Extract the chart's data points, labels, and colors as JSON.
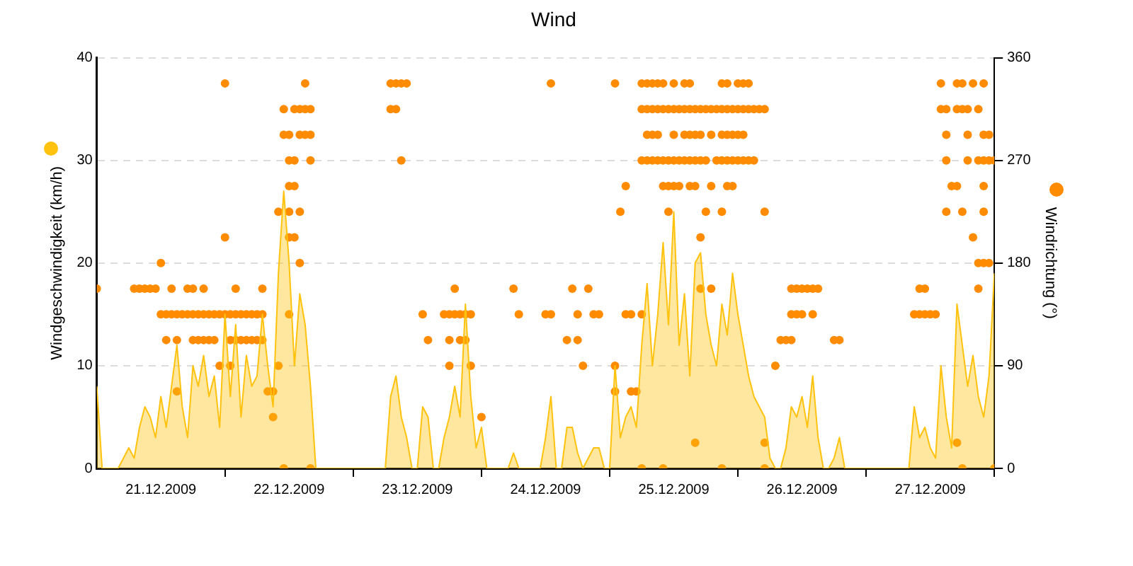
{
  "chart_data": {
    "type": "area",
    "title": "Wind",
    "ylabel": "Windgeschwindigkeit (km/h)",
    "y2label": "Windrichtung (°)",
    "xlim": [
      "2009-12-21T00:00",
      "2009-12-28T00:00"
    ],
    "xticks": [
      {
        "value": "2009-12-21T12:00",
        "label": "21.12.2009"
      },
      {
        "value": "2009-12-22T00:00",
        "label": null
      },
      {
        "value": "2009-12-22T12:00",
        "label": "22.12.2009"
      },
      {
        "value": "2009-12-23T00:00",
        "label": null
      },
      {
        "value": "2009-12-23T12:00",
        "label": "23.12.2009"
      },
      {
        "value": "2009-12-24T00:00",
        "label": null
      },
      {
        "value": "2009-12-24T12:00",
        "label": "24.12.2009"
      },
      {
        "value": "2009-12-25T00:00",
        "label": null
      },
      {
        "value": "2009-12-25T12:00",
        "label": "25.12.2009"
      },
      {
        "value": "2009-12-26T00:00",
        "label": null
      },
      {
        "value": "2009-12-26T12:00",
        "label": "26.12.2009"
      },
      {
        "value": "2009-12-27T00:00",
        "label": null
      },
      {
        "value": "2009-12-27T12:00",
        "label": "27.12.2009"
      },
      {
        "value": "2009-12-28T00:00",
        "label": null
      }
    ],
    "ylim": [
      0,
      40
    ],
    "yticks": [
      0,
      10,
      20,
      30,
      40
    ],
    "y2lim": [
      0,
      360
    ],
    "y2ticks": [
      0,
      90,
      180,
      270,
      360
    ],
    "grid": "y",
    "legend": false,
    "x": [
      "2009-12-21T00:00",
      "2009-12-21T01:00",
      "2009-12-21T02:00",
      "2009-12-21T03:00",
      "2009-12-21T04:00",
      "2009-12-21T05:00",
      "2009-12-21T06:00",
      "2009-12-21T07:00",
      "2009-12-21T08:00",
      "2009-12-21T09:00",
      "2009-12-21T10:00",
      "2009-12-21T11:00",
      "2009-12-21T12:00",
      "2009-12-21T13:00",
      "2009-12-21T14:00",
      "2009-12-21T15:00",
      "2009-12-21T16:00",
      "2009-12-21T17:00",
      "2009-12-21T18:00",
      "2009-12-21T19:00",
      "2009-12-21T20:00",
      "2009-12-21T21:00",
      "2009-12-21T22:00",
      "2009-12-21T23:00",
      "2009-12-22T00:00",
      "2009-12-22T01:00",
      "2009-12-22T02:00",
      "2009-12-22T03:00",
      "2009-12-22T04:00",
      "2009-12-22T05:00",
      "2009-12-22T06:00",
      "2009-12-22T07:00",
      "2009-12-22T08:00",
      "2009-12-22T09:00",
      "2009-12-22T10:00",
      "2009-12-22T11:00",
      "2009-12-22T12:00",
      "2009-12-22T13:00",
      "2009-12-22T14:00",
      "2009-12-22T15:00",
      "2009-12-22T16:00",
      "2009-12-22T17:00",
      "2009-12-23T06:00",
      "2009-12-23T07:00",
      "2009-12-23T08:00",
      "2009-12-23T09:00",
      "2009-12-23T10:00",
      "2009-12-23T11:00",
      "2009-12-23T12:00",
      "2009-12-23T13:00",
      "2009-12-23T14:00",
      "2009-12-23T15:00",
      "2009-12-23T16:00",
      "2009-12-23T17:00",
      "2009-12-23T18:00",
      "2009-12-23T19:00",
      "2009-12-23T20:00",
      "2009-12-23T21:00",
      "2009-12-23T22:00",
      "2009-12-23T23:00",
      "2009-12-24T00:00",
      "2009-12-24T01:00",
      "2009-12-24T05:00",
      "2009-12-24T06:00",
      "2009-12-24T07:00",
      "2009-12-24T08:00",
      "2009-12-24T11:00",
      "2009-12-24T12:00",
      "2009-12-24T13:00",
      "2009-12-24T14:00",
      "2009-12-24T15:00",
      "2009-12-24T16:00",
      "2009-12-24T17:00",
      "2009-12-24T18:00",
      "2009-12-24T19:00",
      "2009-12-24T20:00",
      "2009-12-24T21:00",
      "2009-12-24T22:00",
      "2009-12-24T23:00",
      "2009-12-25T00:00",
      "2009-12-25T01:00",
      "2009-12-25T02:00",
      "2009-12-25T03:00",
      "2009-12-25T04:00",
      "2009-12-25T05:00",
      "2009-12-25T06:00",
      "2009-12-25T07:00",
      "2009-12-25T08:00",
      "2009-12-25T09:00",
      "2009-12-25T10:00",
      "2009-12-25T11:00",
      "2009-12-25T12:00",
      "2009-12-25T13:00",
      "2009-12-25T14:00",
      "2009-12-25T15:00",
      "2009-12-25T16:00",
      "2009-12-25T17:00",
      "2009-12-25T18:00",
      "2009-12-25T19:00",
      "2009-12-25T20:00",
      "2009-12-25T21:00",
      "2009-12-25T22:00",
      "2009-12-25T23:00",
      "2009-12-26T00:00",
      "2009-12-26T01:00",
      "2009-12-26T02:00",
      "2009-12-26T03:00",
      "2009-12-26T04:00",
      "2009-12-26T05:00",
      "2009-12-26T06:00",
      "2009-12-26T07:00",
      "2009-12-26T08:00",
      "2009-12-26T09:00",
      "2009-12-26T10:00",
      "2009-12-26T11:00",
      "2009-12-26T12:00",
      "2009-12-26T13:00",
      "2009-12-26T14:00",
      "2009-12-26T15:00",
      "2009-12-26T16:00",
      "2009-12-26T17:00",
      "2009-12-26T18:00",
      "2009-12-26T19:00",
      "2009-12-26T20:00",
      "2009-12-27T07:00",
      "2009-12-27T08:00",
      "2009-12-27T09:00",
      "2009-12-27T10:00",
      "2009-12-27T11:00",
      "2009-12-27T12:00",
      "2009-12-27T13:00",
      "2009-12-27T14:00",
      "2009-12-27T15:00",
      "2009-12-27T16:00",
      "2009-12-27T17:00",
      "2009-12-27T18:00",
      "2009-12-27T19:00",
      "2009-12-27T20:00",
      "2009-12-27T21:00",
      "2009-12-27T22:00",
      "2009-12-27T23:00",
      "2009-12-28T00:00"
    ],
    "series": [
      {
        "marker": "none",
        "color": "#ffc20e",
        "values": [
          8,
          0,
          0,
          0,
          0,
          1,
          2,
          1,
          4,
          6,
          5,
          3,
          7,
          4,
          8,
          12,
          6,
          3,
          10,
          8,
          11,
          7,
          9,
          4,
          15,
          7,
          14,
          5,
          11,
          8,
          9,
          15,
          10,
          6,
          19,
          27,
          20,
          10,
          17,
          14,
          8,
          0,
          0,
          7,
          9,
          5,
          3,
          0,
          0,
          6,
          5,
          0,
          0,
          3,
          5,
          8,
          5,
          16,
          7,
          2,
          4,
          0,
          0,
          1.5,
          0,
          0,
          0,
          3,
          7,
          0,
          0,
          4,
          4,
          1.5,
          0,
          1,
          2,
          2,
          0,
          0,
          10,
          3,
          5,
          6,
          4,
          12,
          18,
          10,
          15,
          22,
          14,
          25,
          12,
          17,
          9,
          20,
          21,
          15,
          12,
          10,
          16,
          13,
          19,
          15,
          12,
          9,
          7,
          6,
          5,
          1,
          0,
          0,
          2,
          6,
          5,
          7,
          4,
          9,
          3,
          0,
          0,
          1,
          3,
          0,
          0,
          0,
          6,
          3,
          4,
          2,
          1,
          10,
          5,
          2,
          16,
          12,
          8,
          11,
          7,
          5,
          9,
          19
        ]
      },
      {
        "type": "scatter",
        "axis": "y2",
        "marker": "circle",
        "color": "#ff8c00",
        "x": [
          "2009-12-21T00:00",
          "2009-12-21T07:00",
          "2009-12-21T08:00",
          "2009-12-21T09:00",
          "2009-12-21T10:00",
          "2009-12-21T11:00",
          "2009-12-21T12:00",
          "2009-12-21T12:00",
          "2009-12-21T13:00",
          "2009-12-21T13:00",
          "2009-12-21T14:00",
          "2009-12-21T14:00",
          "2009-12-21T15:00",
          "2009-12-21T15:00",
          "2009-12-21T15:00",
          "2009-12-21T16:00",
          "2009-12-21T17:00",
          "2009-12-21T17:00",
          "2009-12-21T18:00",
          "2009-12-21T18:00",
          "2009-12-21T18:00",
          "2009-12-21T19:00",
          "2009-12-21T19:00",
          "2009-12-21T20:00",
          "2009-12-21T20:00",
          "2009-12-21T20:00",
          "2009-12-21T21:00",
          "2009-12-21T21:00",
          "2009-12-21T22:00",
          "2009-12-21T22:00",
          "2009-12-21T23:00",
          "2009-12-21T23:00",
          "2009-12-22T00:00",
          "2009-12-22T00:00",
          "2009-12-22T00:00",
          "2009-12-22T01:00",
          "2009-12-22T01:00",
          "2009-12-22T01:00",
          "2009-12-22T02:00",
          "2009-12-22T02:00",
          "2009-12-22T02:00",
          "2009-12-22T03:00",
          "2009-12-22T03:00",
          "2009-12-22T04:00",
          "2009-12-22T04:00",
          "2009-12-22T05:00",
          "2009-12-22T05:00",
          "2009-12-22T06:00",
          "2009-12-22T06:00",
          "2009-12-22T07:00",
          "2009-12-22T07:00",
          "2009-12-22T07:00",
          "2009-12-22T08:00",
          "2009-12-22T09:00",
          "2009-12-22T09:00",
          "2009-12-22T10:00",
          "2009-12-22T10:00",
          "2009-12-22T11:00",
          "2009-12-22T11:00",
          "2009-12-22T11:00",
          "2009-12-22T12:00",
          "2009-12-22T12:00",
          "2009-12-22T12:00",
          "2009-12-22T12:00",
          "2009-12-22T12:00",
          "2009-12-22T12:00",
          "2009-12-22T13:00",
          "2009-12-22T13:00",
          "2009-12-22T13:00",
          "2009-12-22T13:00",
          "2009-12-22T14:00",
          "2009-12-22T14:00",
          "2009-12-22T14:00",
          "2009-12-22T14:00",
          "2009-12-22T15:00",
          "2009-12-22T15:00",
          "2009-12-22T15:00",
          "2009-12-22T16:00",
          "2009-12-22T16:00",
          "2009-12-22T16:00",
          "2009-12-22T16:00",
          "2009-12-23T07:00",
          "2009-12-23T07:00",
          "2009-12-23T08:00",
          "2009-12-23T08:00",
          "2009-12-23T09:00",
          "2009-12-23T09:00",
          "2009-12-23T10:00",
          "2009-12-23T13:00",
          "2009-12-23T14:00",
          "2009-12-23T17:00",
          "2009-12-23T18:00",
          "2009-12-23T18:00",
          "2009-12-23T18:00",
          "2009-12-23T19:00",
          "2009-12-23T19:00",
          "2009-12-23T20:00",
          "2009-12-23T20:00",
          "2009-12-23T21:00",
          "2009-12-23T21:00",
          "2009-12-23T22:00",
          "2009-12-23T22:00",
          "2009-12-24T00:00",
          "2009-12-24T06:00",
          "2009-12-24T07:00",
          "2009-12-24T12:00",
          "2009-12-24T13:00",
          "2009-12-24T13:00",
          "2009-12-24T16:00",
          "2009-12-24T17:00",
          "2009-12-24T18:00",
          "2009-12-24T18:00",
          "2009-12-24T19:00",
          "2009-12-24T20:00",
          "2009-12-24T21:00",
          "2009-12-24T22:00",
          "2009-12-25T01:00",
          "2009-12-25T01:00",
          "2009-12-25T01:00",
          "2009-12-25T02:00",
          "2009-12-25T03:00",
          "2009-12-25T03:00",
          "2009-12-25T04:00",
          "2009-12-25T04:00",
          "2009-12-25T05:00",
          "2009-12-25T06:00",
          "2009-12-25T06:00",
          "2009-12-25T06:00",
          "2009-12-25T06:00",
          "2009-12-25T06:00",
          "2009-12-25T07:00",
          "2009-12-25T07:00",
          "2009-12-25T07:00",
          "2009-12-25T07:00",
          "2009-12-25T08:00",
          "2009-12-25T08:00",
          "2009-12-25T08:00",
          "2009-12-25T08:00",
          "2009-12-25T09:00",
          "2009-12-25T09:00",
          "2009-12-25T09:00",
          "2009-12-25T09:00",
          "2009-12-25T10:00",
          "2009-12-25T10:00",
          "2009-12-25T10:00",
          "2009-12-25T10:00",
          "2009-12-25T10:00",
          "2009-12-25T11:00",
          "2009-12-25T11:00",
          "2009-12-25T11:00",
          "2009-12-25T11:00",
          "2009-12-25T12:00",
          "2009-12-25T12:00",
          "2009-12-25T12:00",
          "2009-12-25T12:00",
          "2009-12-25T12:00",
          "2009-12-25T13:00",
          "2009-12-25T13:00",
          "2009-12-25T13:00",
          "2009-12-25T14:00",
          "2009-12-25T14:00",
          "2009-12-25T14:00",
          "2009-12-25T14:00",
          "2009-12-25T15:00",
          "2009-12-25T15:00",
          "2009-12-25T15:00",
          "2009-12-25T15:00",
          "2009-12-25T15:00",
          "2009-12-25T16:00",
          "2009-12-25T16:00",
          "2009-12-25T16:00",
          "2009-12-25T16:00",
          "2009-12-25T16:00",
          "2009-12-25T17:00",
          "2009-12-25T17:00",
          "2009-12-25T17:00",
          "2009-12-25T17:00",
          "2009-12-25T17:00",
          "2009-12-25T18:00",
          "2009-12-25T18:00",
          "2009-12-25T18:00",
          "2009-12-25T19:00",
          "2009-12-25T19:00",
          "2009-12-25T19:00",
          "2009-12-25T19:00",
          "2009-12-25T20:00",
          "2009-12-25T20:00",
          "2009-12-25T21:00",
          "2009-12-25T21:00",
          "2009-12-25T21:00",
          "2009-12-25T21:00",
          "2009-12-25T21:00",
          "2009-12-25T21:00",
          "2009-12-25T22:00",
          "2009-12-25T22:00",
          "2009-12-25T22:00",
          "2009-12-25T22:00",
          "2009-12-25T22:00",
          "2009-12-25T23:00",
          "2009-12-25T23:00",
          "2009-12-25T23:00",
          "2009-12-25T23:00",
          "2009-12-26T00:00",
          "2009-12-26T00:00",
          "2009-12-26T00:00",
          "2009-12-26T00:00",
          "2009-12-26T01:00",
          "2009-12-26T01:00",
          "2009-12-26T01:00",
          "2009-12-26T01:00",
          "2009-12-26T02:00",
          "2009-12-26T02:00",
          "2009-12-26T02:00",
          "2009-12-26T03:00",
          "2009-12-26T03:00",
          "2009-12-26T04:00",
          "2009-12-26T05:00",
          "2009-12-26T05:00",
          "2009-12-26T05:00",
          "2009-12-26T05:00",
          "2009-12-26T07:00",
          "2009-12-26T08:00",
          "2009-12-26T09:00",
          "2009-12-26T10:00",
          "2009-12-26T10:00",
          "2009-12-26T10:00",
          "2009-12-26T11:00",
          "2009-12-26T11:00",
          "2009-12-26T12:00",
          "2009-12-26T12:00",
          "2009-12-26T13:00",
          "2009-12-26T14:00",
          "2009-12-26T14:00",
          "2009-12-26T15:00",
          "2009-12-26T18:00",
          "2009-12-26T19:00",
          "2009-12-27T09:00",
          "2009-12-27T10:00",
          "2009-12-27T10:00",
          "2009-12-27T11:00",
          "2009-12-27T11:00",
          "2009-12-27T12:00",
          "2009-12-27T13:00",
          "2009-12-27T14:00",
          "2009-12-27T14:00",
          "2009-12-27T15:00",
          "2009-12-27T15:00",
          "2009-12-27T15:00",
          "2009-12-27T15:00",
          "2009-12-27T16:00",
          "2009-12-27T17:00",
          "2009-12-27T17:00",
          "2009-12-27T17:00",
          "2009-12-27T17:00",
          "2009-12-27T18:00",
          "2009-12-27T18:00",
          "2009-12-27T18:00",
          "2009-12-27T18:00",
          "2009-12-27T19:00",
          "2009-12-27T19:00",
          "2009-12-27T19:00",
          "2009-12-27T20:00",
          "2009-12-27T20:00",
          "2009-12-27T21:00",
          "2009-12-27T21:00",
          "2009-12-27T21:00",
          "2009-12-27T21:00",
          "2009-12-27T22:00",
          "2009-12-27T22:00",
          "2009-12-27T22:00",
          "2009-12-27T22:00",
          "2009-12-27T22:00",
          "2009-12-27T22:00",
          "2009-12-27T23:00",
          "2009-12-27T23:00",
          "2009-12-27T23:00",
          "2009-12-28T00:00",
          "2009-12-28T00:00"
        ],
        "values": [
          157.5,
          157.5,
          157.5,
          157.5,
          157.5,
          157.5,
          180,
          135,
          135,
          112.5,
          135,
          157.5,
          135,
          112.5,
          67.5,
          135,
          135,
          157.5,
          135,
          112.5,
          157.5,
          135,
          112.5,
          135,
          112.5,
          157.5,
          135,
          112.5,
          135,
          112.5,
          135,
          90,
          337.5,
          202.5,
          135,
          90,
          135,
          112.5,
          135,
          112.5,
          157.5,
          135,
          112.5,
          135,
          112.5,
          135,
          112.5,
          135,
          112.5,
          135,
          112.5,
          157.5,
          67.5,
          67.5,
          45,
          90,
          225,
          0,
          315,
          292.5,
          292.5,
          270,
          247.5,
          225,
          202.5,
          135,
          315,
          270,
          247.5,
          202.5,
          315,
          292.5,
          225,
          180,
          315,
          292.5,
          337.5,
          315,
          292.5,
          270,
          0,
          337.5,
          315,
          337.5,
          315,
          337.5,
          270,
          337.5,
          135,
          112.5,
          135,
          135,
          112.5,
          90,
          157.5,
          135,
          135,
          112.5,
          135,
          112.5,
          135,
          90,
          45,
          157.5,
          135,
          135,
          337.5,
          135,
          112.5,
          157.5,
          135,
          112.5,
          90,
          157.5,
          135,
          135,
          337.5,
          90,
          67.5,
          225,
          247.5,
          135,
          67.5,
          135,
          67.5,
          337.5,
          315,
          270,
          135,
          0,
          337.5,
          315,
          292.5,
          270,
          337.5,
          315,
          292.5,
          270,
          337.5,
          315,
          292.5,
          270,
          337.5,
          315,
          270,
          247.5,
          0,
          315,
          270,
          247.5,
          225,
          337.5,
          315,
          292.5,
          270,
          247.5,
          315,
          270,
          247.5,
          337.5,
          315,
          292.5,
          270,
          337.5,
          315,
          292.5,
          270,
          247.5,
          315,
          292.5,
          270,
          247.5,
          22.5,
          315,
          292.5,
          270,
          202.5,
          157.5,
          315,
          270,
          225,
          315,
          292.5,
          247.5,
          157.5,
          315,
          270,
          337.5,
          315,
          292.5,
          270,
          225,
          0,
          337.5,
          315,
          292.5,
          270,
          247.5,
          315,
          292.5,
          270,
          247.5,
          337.5,
          315,
          292.5,
          270,
          337.5,
          315,
          292.5,
          270,
          337.5,
          315,
          270,
          315,
          270,
          315,
          315,
          225,
          22.5,
          0,
          90,
          112.5,
          112.5,
          157.5,
          135,
          112.5,
          157.5,
          135,
          157.5,
          135,
          157.5,
          157.5,
          135,
          157.5,
          112.5,
          112.5,
          135,
          135,
          157.5,
          135,
          157.5,
          135,
          135,
          337.5,
          315,
          315,
          292.5,
          270,
          225,
          247.5,
          337.5,
          315,
          247.5,
          22.5,
          337.5,
          315,
          225,
          0,
          315,
          292.5,
          270,
          337.5,
          202.5,
          315,
          270,
          180,
          157.5,
          337.5,
          292.5,
          270,
          247.5,
          225,
          180,
          292.5,
          270,
          180,
          270,
          0
        ]
      }
    ]
  }
}
